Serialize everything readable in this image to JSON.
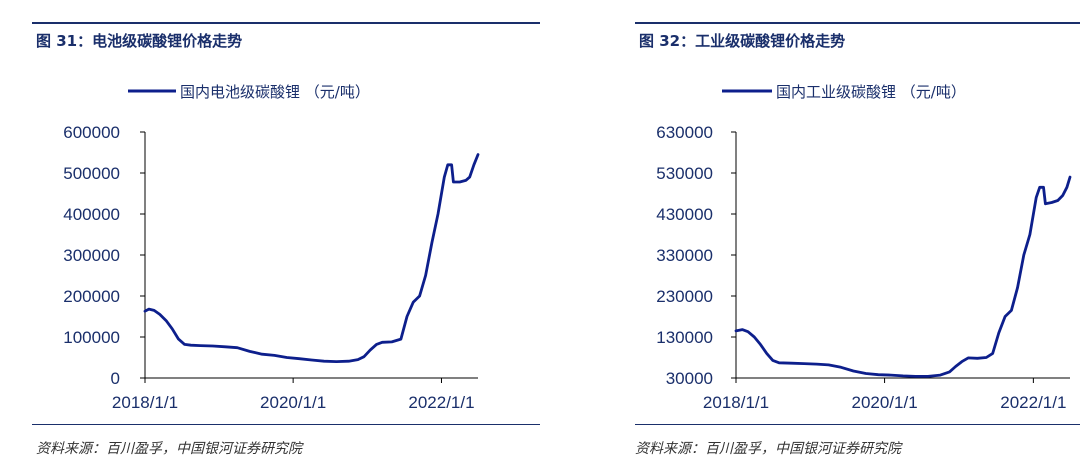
{
  "chart_data": [
    {
      "type": "line",
      "title": "图 31：电池级碳酸锂价格走势",
      "source": "资料来源：百川盈孚，中国银河证券研究院",
      "legend_position": "top",
      "x_ticks": [
        "2018/1/1",
        "2020/1/1",
        "2022/1/1"
      ],
      "y_ticks": [
        "0",
        "100000",
        "200000",
        "300000",
        "400000",
        "500000",
        "600000"
      ],
      "xlim": [
        "2018-01-01",
        "2022-06-30"
      ],
      "ylim": [
        0,
        600000
      ],
      "colors": {
        "series": "#0d1f8c"
      },
      "series": [
        {
          "name": "国内电池级碳酸锂 （元/吨）",
          "points": [
            [
              "2018-01-01",
              163000
            ],
            [
              "2018-01-20",
              168000
            ],
            [
              "2018-02-15",
              165000
            ],
            [
              "2018-03-15",
              155000
            ],
            [
              "2018-04-15",
              140000
            ],
            [
              "2018-05-15",
              120000
            ],
            [
              "2018-06-15",
              95000
            ],
            [
              "2018-07-15",
              82000
            ],
            [
              "2018-08-15",
              80000
            ],
            [
              "2018-10-01",
              79000
            ],
            [
              "2018-12-01",
              78000
            ],
            [
              "2019-02-01",
              76000
            ],
            [
              "2019-04-01",
              74000
            ],
            [
              "2019-06-01",
              65000
            ],
            [
              "2019-08-01",
              58000
            ],
            [
              "2019-10-01",
              55000
            ],
            [
              "2019-12-01",
              50000
            ],
            [
              "2020-02-01",
              47000
            ],
            [
              "2020-04-01",
              44000
            ],
            [
              "2020-06-01",
              41000
            ],
            [
              "2020-08-01",
              40000
            ],
            [
              "2020-10-01",
              41000
            ],
            [
              "2020-11-15",
              45000
            ],
            [
              "2020-12-15",
              52000
            ],
            [
              "2021-01-15",
              68000
            ],
            [
              "2021-02-15",
              82000
            ],
            [
              "2021-03-15",
              87000
            ],
            [
              "2021-05-01",
              88000
            ],
            [
              "2021-06-15",
              95000
            ],
            [
              "2021-07-15",
              150000
            ],
            [
              "2021-08-15",
              185000
            ],
            [
              "2021-09-15",
              200000
            ],
            [
              "2021-10-15",
              250000
            ],
            [
              "2021-11-15",
              330000
            ],
            [
              "2021-12-15",
              400000
            ],
            [
              "2022-01-15",
              490000
            ],
            [
              "2022-02-01",
              520000
            ],
            [
              "2022-02-20",
              520000
            ],
            [
              "2022-03-01",
              478000
            ],
            [
              "2022-04-01",
              478000
            ],
            [
              "2022-05-01",
              482000
            ],
            [
              "2022-05-20",
              490000
            ],
            [
              "2022-06-10",
              520000
            ],
            [
              "2022-06-30",
              545000
            ]
          ]
        }
      ]
    },
    {
      "type": "line",
      "title": "图 32：工业级碳酸锂价格走势",
      "source": "资料来源：百川盈孚，中国银河证券研究院",
      "legend_position": "top",
      "x_ticks": [
        "2018/1/1",
        "2020/1/1",
        "2022/1/1"
      ],
      "y_ticks": [
        "30000",
        "130000",
        "230000",
        "330000",
        "430000",
        "530000",
        "630000"
      ],
      "xlim": [
        "2018-01-01",
        "2022-06-30"
      ],
      "ylim": [
        30000,
        630000
      ],
      "colors": {
        "series": "#0d1f8c"
      },
      "series": [
        {
          "name": "国内工业级碳酸锂 （元/吨）",
          "points": [
            [
              "2018-01-01",
              145000
            ],
            [
              "2018-02-01",
              148000
            ],
            [
              "2018-03-01",
              143000
            ],
            [
              "2018-04-01",
              130000
            ],
            [
              "2018-05-01",
              112000
            ],
            [
              "2018-06-01",
              90000
            ],
            [
              "2018-07-01",
              73000
            ],
            [
              "2018-08-01",
              67000
            ],
            [
              "2018-10-01",
              66000
            ],
            [
              "2018-12-01",
              65000
            ],
            [
              "2019-02-01",
              64000
            ],
            [
              "2019-04-01",
              62000
            ],
            [
              "2019-06-01",
              56000
            ],
            [
              "2019-08-01",
              47000
            ],
            [
              "2019-10-01",
              41000
            ],
            [
              "2019-12-01",
              38000
            ],
            [
              "2020-02-01",
              37000
            ],
            [
              "2020-04-01",
              35000
            ],
            [
              "2020-06-01",
              34000
            ],
            [
              "2020-08-01",
              34000
            ],
            [
              "2020-10-01",
              37000
            ],
            [
              "2020-11-15",
              45000
            ],
            [
              "2020-12-15",
              58000
            ],
            [
              "2021-01-15",
              70000
            ],
            [
              "2021-02-15",
              79000
            ],
            [
              "2021-04-01",
              78000
            ],
            [
              "2021-05-15",
              80000
            ],
            [
              "2021-06-15",
              90000
            ],
            [
              "2021-07-15",
              140000
            ],
            [
              "2021-08-15",
              180000
            ],
            [
              "2021-09-15",
              195000
            ],
            [
              "2021-10-15",
              250000
            ],
            [
              "2021-11-15",
              330000
            ],
            [
              "2021-12-15",
              380000
            ],
            [
              "2022-01-15",
              470000
            ],
            [
              "2022-02-01",
              495000
            ],
            [
              "2022-02-20",
              495000
            ],
            [
              "2022-03-01",
              455000
            ],
            [
              "2022-04-01",
              458000
            ],
            [
              "2022-05-01",
              463000
            ],
            [
              "2022-05-25",
              475000
            ],
            [
              "2022-06-15",
              495000
            ],
            [
              "2022-06-30",
              520000
            ]
          ]
        }
      ]
    }
  ]
}
